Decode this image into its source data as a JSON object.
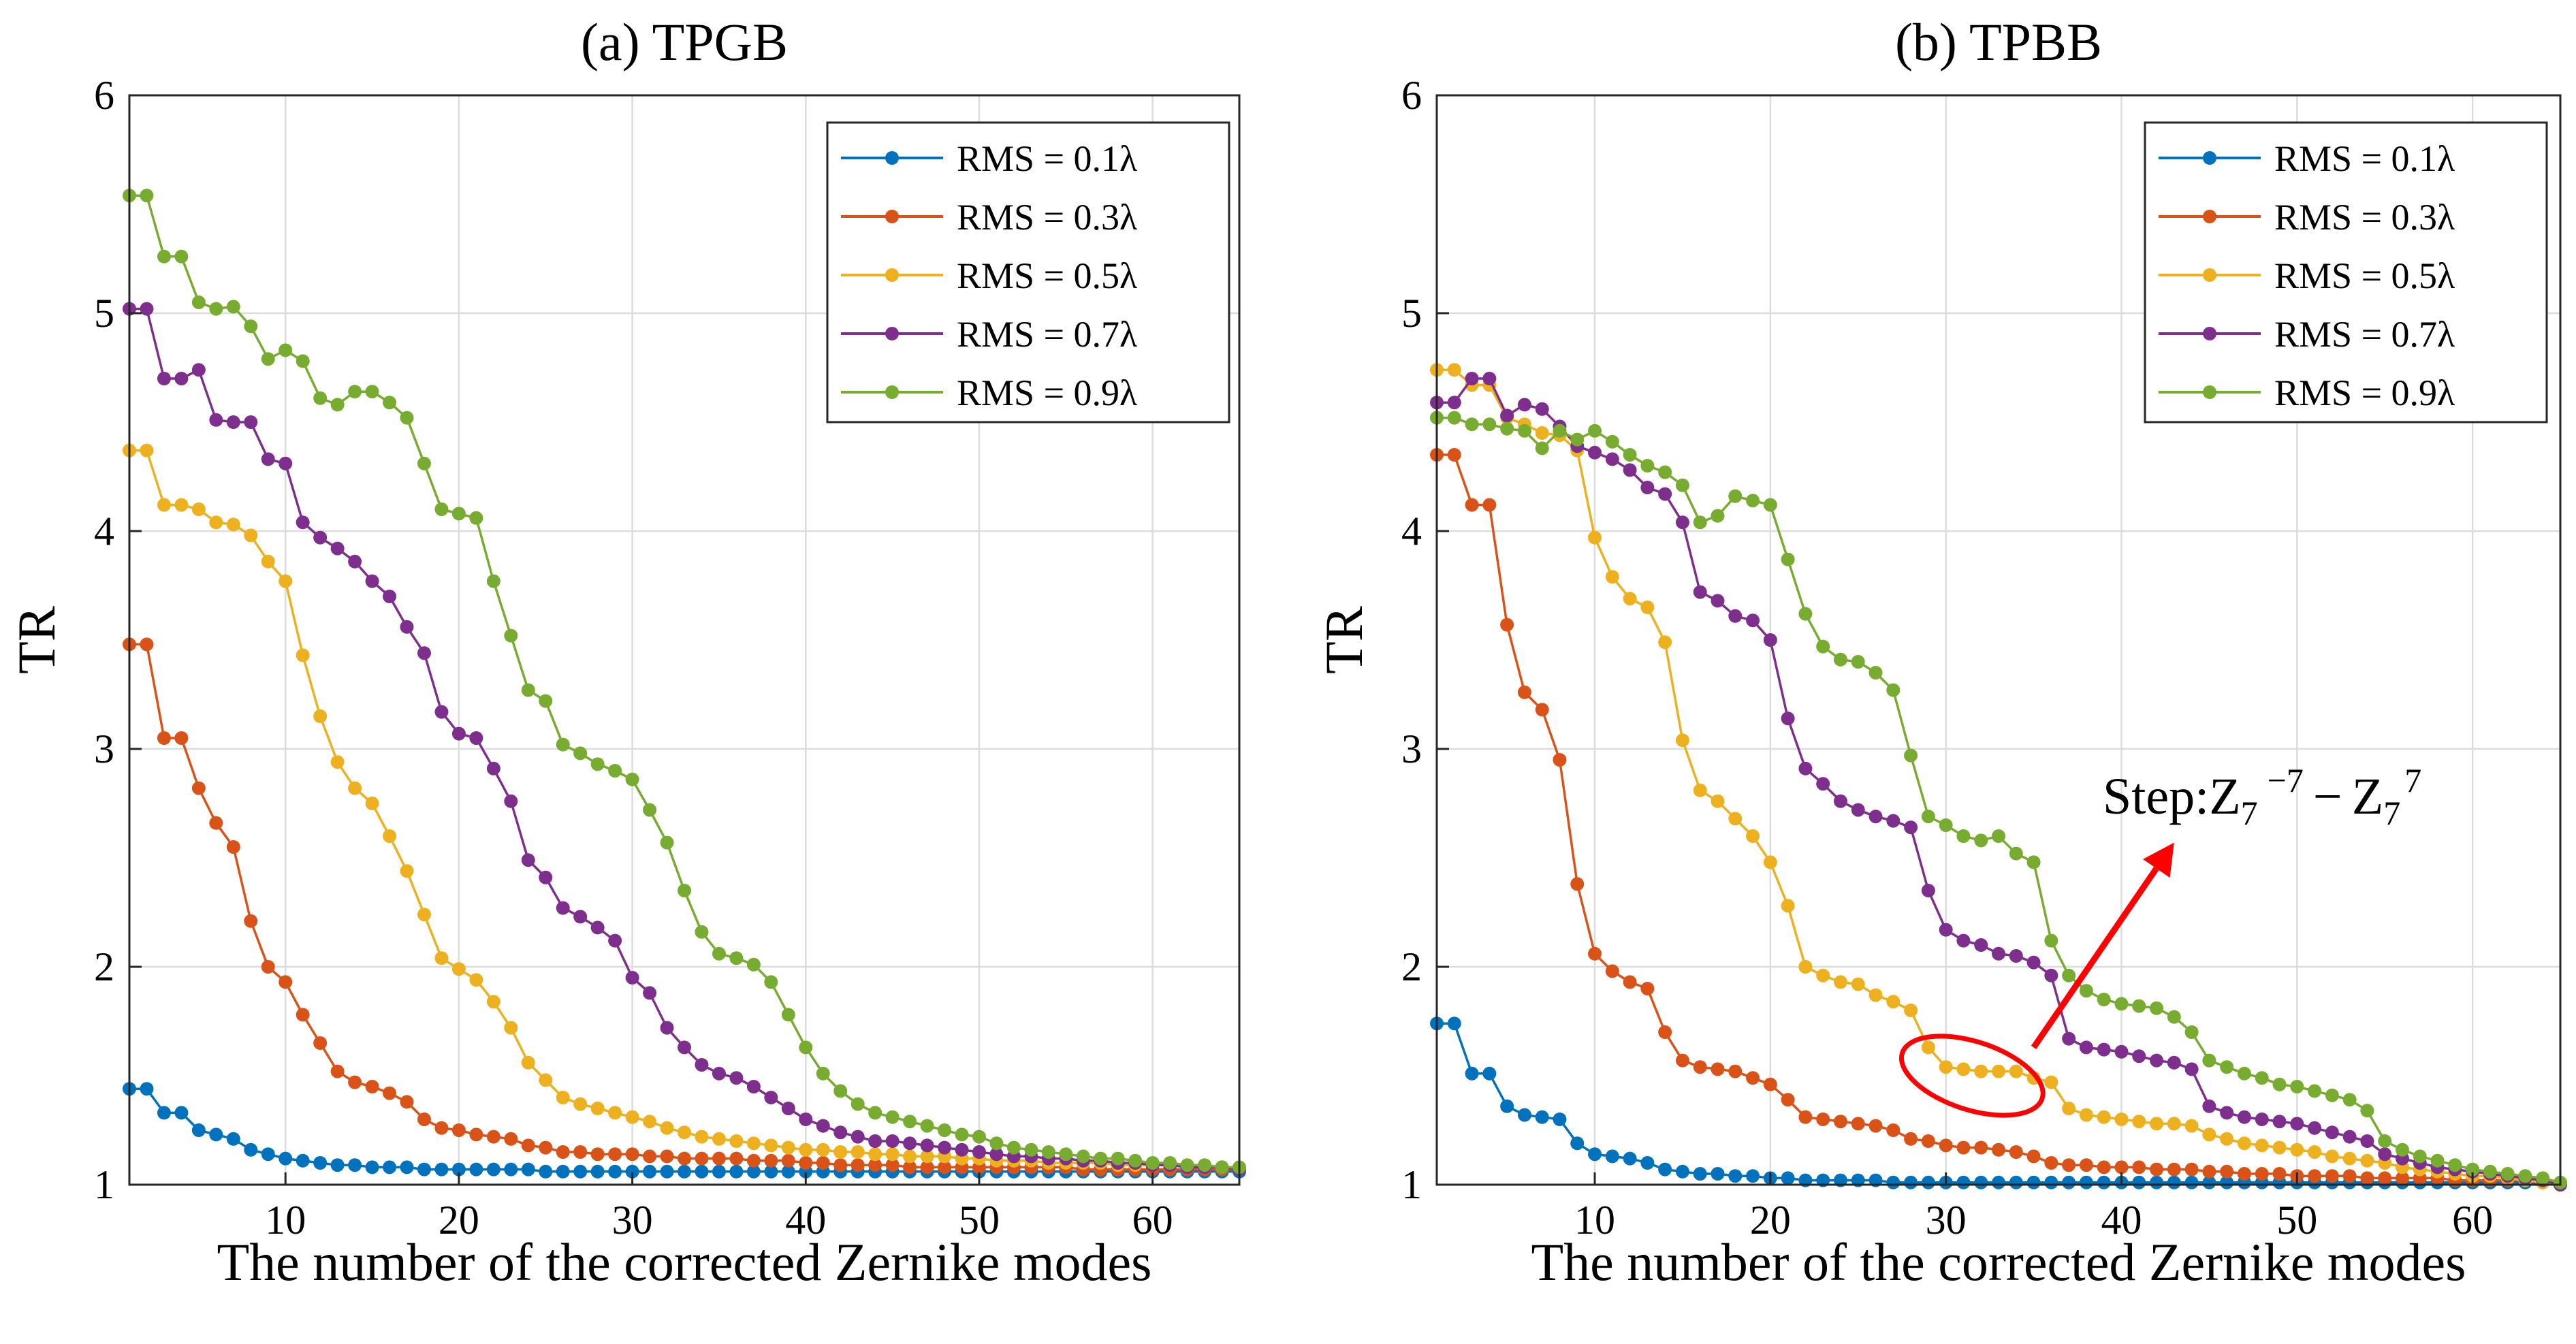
{
  "chart_data": [
    {
      "type": "line",
      "title": "(a) TPGB",
      "xlabel": "The number of the corrected Zernike modes",
      "ylabel": "TR",
      "xlim": [
        1,
        65
      ],
      "ylim": [
        1,
        6
      ],
      "xticks": [
        10,
        20,
        30,
        40,
        50,
        60
      ],
      "yticks": [
        1,
        2,
        3,
        4,
        5,
        6
      ],
      "grid": true,
      "legend_position": "top-right",
      "x": [
        1,
        2,
        3,
        4,
        5,
        6,
        7,
        8,
        9,
        10,
        11,
        12,
        13,
        14,
        15,
        16,
        17,
        18,
        19,
        20,
        21,
        22,
        23,
        24,
        25,
        26,
        27,
        28,
        29,
        30,
        31,
        32,
        33,
        34,
        35,
        36,
        37,
        38,
        39,
        40,
        41,
        42,
        43,
        44,
        45,
        46,
        47,
        48,
        49,
        50,
        51,
        52,
        53,
        54,
        55,
        56,
        57,
        58,
        59,
        60,
        61,
        62,
        63,
        64,
        65
      ],
      "series": [
        {
          "name": "RMS = 0.1λ",
          "color": "#0072BD",
          "values": [
            1.44,
            1.44,
            1.33,
            1.33,
            1.25,
            1.23,
            1.21,
            1.16,
            1.14,
            1.12,
            1.11,
            1.1,
            1.09,
            1.09,
            1.08,
            1.08,
            1.08,
            1.07,
            1.07,
            1.07,
            1.07,
            1.07,
            1.07,
            1.07,
            1.06,
            1.06,
            1.06,
            1.06,
            1.06,
            1.06,
            1.06,
            1.06,
            1.06,
            1.06,
            1.06,
            1.06,
            1.06,
            1.06,
            1.06,
            1.06,
            1.06,
            1.06,
            1.06,
            1.06,
            1.06,
            1.06,
            1.06,
            1.06,
            1.06,
            1.06,
            1.06,
            1.06,
            1.06,
            1.06,
            1.06,
            1.06,
            1.06,
            1.06,
            1.06,
            1.06,
            1.06,
            1.06,
            1.06,
            1.06,
            1.06
          ]
        },
        {
          "name": "RMS = 0.3λ",
          "color": "#D95319",
          "values": [
            3.48,
            3.48,
            3.05,
            3.05,
            2.82,
            2.66,
            2.55,
            2.21,
            2.0,
            1.93,
            1.78,
            1.65,
            1.52,
            1.47,
            1.45,
            1.42,
            1.38,
            1.3,
            1.26,
            1.25,
            1.23,
            1.22,
            1.21,
            1.18,
            1.17,
            1.15,
            1.15,
            1.14,
            1.14,
            1.14,
            1.13,
            1.13,
            1.12,
            1.12,
            1.12,
            1.12,
            1.11,
            1.11,
            1.11,
            1.1,
            1.1,
            1.09,
            1.09,
            1.09,
            1.09,
            1.08,
            1.08,
            1.08,
            1.08,
            1.08,
            1.08,
            1.08,
            1.08,
            1.08,
            1.08,
            1.07,
            1.07,
            1.07,
            1.07,
            1.07,
            1.07,
            1.07,
            1.07,
            1.07,
            1.07
          ]
        },
        {
          "name": "RMS = 0.5λ",
          "color": "#EDB120",
          "values": [
            4.37,
            4.37,
            4.12,
            4.12,
            4.1,
            4.04,
            4.03,
            3.98,
            3.86,
            3.77,
            3.43,
            3.15,
            2.94,
            2.82,
            2.75,
            2.6,
            2.44,
            2.24,
            2.04,
            1.99,
            1.94,
            1.84,
            1.72,
            1.56,
            1.48,
            1.4,
            1.37,
            1.35,
            1.33,
            1.31,
            1.29,
            1.26,
            1.24,
            1.22,
            1.21,
            1.2,
            1.19,
            1.18,
            1.17,
            1.16,
            1.16,
            1.15,
            1.15,
            1.14,
            1.14,
            1.13,
            1.13,
            1.13,
            1.12,
            1.12,
            1.11,
            1.11,
            1.11,
            1.1,
            1.1,
            1.1,
            1.1,
            1.09,
            1.09,
            1.09,
            1.09,
            1.08,
            1.08,
            1.08,
            1.07
          ]
        },
        {
          "name": "RMS = 0.7λ",
          "color": "#7E2F8E",
          "values": [
            5.02,
            5.02,
            4.7,
            4.7,
            4.74,
            4.51,
            4.5,
            4.5,
            4.33,
            4.31,
            4.04,
            3.97,
            3.92,
            3.86,
            3.77,
            3.7,
            3.56,
            3.44,
            3.17,
            3.07,
            3.05,
            2.91,
            2.76,
            2.49,
            2.41,
            2.27,
            2.23,
            2.18,
            2.12,
            1.95,
            1.88,
            1.72,
            1.63,
            1.55,
            1.51,
            1.49,
            1.45,
            1.4,
            1.35,
            1.3,
            1.27,
            1.24,
            1.22,
            1.2,
            1.2,
            1.19,
            1.18,
            1.17,
            1.16,
            1.15,
            1.14,
            1.13,
            1.13,
            1.12,
            1.12,
            1.11,
            1.11,
            1.1,
            1.1,
            1.09,
            1.09,
            1.08,
            1.08,
            1.08,
            1.07
          ]
        },
        {
          "name": "RMS = 0.9λ",
          "color": "#77AC30",
          "values": [
            5.54,
            5.54,
            5.26,
            5.26,
            5.05,
            5.02,
            5.03,
            4.94,
            4.79,
            4.83,
            4.78,
            4.61,
            4.58,
            4.64,
            4.64,
            4.59,
            4.52,
            4.31,
            4.1,
            4.08,
            4.06,
            3.77,
            3.52,
            3.27,
            3.22,
            3.02,
            2.98,
            2.93,
            2.9,
            2.86,
            2.72,
            2.57,
            2.35,
            2.16,
            2.06,
            2.04,
            2.01,
            1.93,
            1.78,
            1.63,
            1.51,
            1.43,
            1.37,
            1.33,
            1.31,
            1.29,
            1.27,
            1.25,
            1.23,
            1.22,
            1.19,
            1.17,
            1.16,
            1.15,
            1.14,
            1.13,
            1.12,
            1.12,
            1.11,
            1.1,
            1.1,
            1.09,
            1.09,
            1.08,
            1.08
          ]
        }
      ]
    },
    {
      "type": "line",
      "title": "(b) TPBB",
      "xlabel": "The number of the corrected Zernike modes",
      "ylabel": "TR",
      "xlim": [
        1,
        65
      ],
      "ylim": [
        1,
        6
      ],
      "xticks": [
        10,
        20,
        30,
        40,
        50,
        60
      ],
      "yticks": [
        1,
        2,
        3,
        4,
        5,
        6
      ],
      "grid": true,
      "legend_position": "top-right",
      "x": [
        1,
        2,
        3,
        4,
        5,
        6,
        7,
        8,
        9,
        10,
        11,
        12,
        13,
        14,
        15,
        16,
        17,
        18,
        19,
        20,
        21,
        22,
        23,
        24,
        25,
        26,
        27,
        28,
        29,
        30,
        31,
        32,
        33,
        34,
        35,
        36,
        37,
        38,
        39,
        40,
        41,
        42,
        43,
        44,
        45,
        46,
        47,
        48,
        49,
        50,
        51,
        52,
        53,
        54,
        55,
        56,
        57,
        58,
        59,
        60,
        61,
        62,
        63,
        64,
        65
      ],
      "series": [
        {
          "name": "RMS = 0.1λ",
          "color": "#0072BD",
          "values": [
            1.74,
            1.74,
            1.51,
            1.51,
            1.36,
            1.32,
            1.31,
            1.3,
            1.19,
            1.14,
            1.13,
            1.12,
            1.1,
            1.07,
            1.06,
            1.05,
            1.05,
            1.04,
            1.04,
            1.03,
            1.03,
            1.02,
            1.02,
            1.02,
            1.02,
            1.02,
            1.01,
            1.01,
            1.01,
            1.01,
            1.01,
            1.01,
            1.01,
            1.01,
            1.01,
            1.01,
            1.01,
            1.01,
            1.01,
            1.01,
            1.01,
            1.01,
            1.01,
            1.01,
            1.01,
            1.01,
            1.01,
            1.01,
            1.01,
            1.01,
            1.01,
            1.01,
            1.01,
            1.01,
            1.01,
            1.01,
            1.01,
            1.01,
            1.01,
            1.01,
            1.01,
            1.01,
            1.01,
            1.01,
            1.0
          ]
        },
        {
          "name": "RMS = 0.3λ",
          "color": "#D95319",
          "values": [
            4.35,
            4.35,
            4.12,
            4.12,
            3.57,
            3.26,
            3.18,
            2.95,
            2.38,
            2.06,
            1.98,
            1.93,
            1.9,
            1.7,
            1.57,
            1.54,
            1.53,
            1.52,
            1.49,
            1.46,
            1.39,
            1.31,
            1.3,
            1.29,
            1.28,
            1.27,
            1.25,
            1.21,
            1.2,
            1.18,
            1.17,
            1.17,
            1.16,
            1.15,
            1.13,
            1.1,
            1.09,
            1.09,
            1.08,
            1.08,
            1.08,
            1.07,
            1.07,
            1.07,
            1.06,
            1.06,
            1.05,
            1.05,
            1.05,
            1.04,
            1.04,
            1.04,
            1.04,
            1.03,
            1.03,
            1.03,
            1.03,
            1.03,
            1.02,
            1.02,
            1.02,
            1.02,
            1.02,
            1.01,
            1.0
          ]
        },
        {
          "name": "RMS = 0.5λ",
          "color": "#EDB120",
          "values": [
            4.74,
            4.74,
            4.67,
            4.67,
            4.52,
            4.49,
            4.45,
            4.44,
            4.37,
            3.97,
            3.79,
            3.69,
            3.65,
            3.49,
            3.04,
            2.81,
            2.76,
            2.68,
            2.6,
            2.48,
            2.28,
            2.0,
            1.96,
            1.93,
            1.92,
            1.87,
            1.84,
            1.8,
            1.63,
            1.54,
            1.53,
            1.52,
            1.52,
            1.52,
            1.49,
            1.47,
            1.35,
            1.32,
            1.31,
            1.3,
            1.29,
            1.28,
            1.28,
            1.27,
            1.23,
            1.21,
            1.19,
            1.18,
            1.17,
            1.16,
            1.15,
            1.13,
            1.12,
            1.11,
            1.1,
            1.08,
            1.07,
            1.06,
            1.05,
            1.04,
            1.04,
            1.03,
            1.02,
            1.01,
            1.0
          ]
        },
        {
          "name": "RMS = 0.7λ",
          "color": "#7E2F8E",
          "values": [
            4.59,
            4.59,
            4.7,
            4.7,
            4.53,
            4.58,
            4.56,
            4.48,
            4.39,
            4.36,
            4.33,
            4.28,
            4.2,
            4.17,
            4.04,
            3.72,
            3.68,
            3.61,
            3.59,
            3.5,
            3.14,
            2.91,
            2.84,
            2.76,
            2.72,
            2.69,
            2.67,
            2.64,
            2.35,
            2.17,
            2.12,
            2.1,
            2.06,
            2.05,
            2.02,
            1.96,
            1.67,
            1.63,
            1.62,
            1.61,
            1.59,
            1.57,
            1.56,
            1.53,
            1.36,
            1.33,
            1.31,
            1.3,
            1.29,
            1.28,
            1.26,
            1.24,
            1.22,
            1.2,
            1.14,
            1.12,
            1.1,
            1.08,
            1.07,
            1.06,
            1.05,
            1.04,
            1.03,
            1.02,
            1.0
          ]
        },
        {
          "name": "RMS = 0.9λ",
          "color": "#77AC30",
          "values": [
            4.52,
            4.52,
            4.49,
            4.49,
            4.47,
            4.46,
            4.38,
            4.46,
            4.42,
            4.46,
            4.41,
            4.35,
            4.3,
            4.27,
            4.21,
            4.04,
            4.07,
            4.16,
            4.14,
            4.12,
            3.87,
            3.62,
            3.47,
            3.41,
            3.4,
            3.35,
            3.27,
            2.97,
            2.69,
            2.65,
            2.6,
            2.58,
            2.6,
            2.52,
            2.48,
            2.12,
            1.96,
            1.89,
            1.85,
            1.83,
            1.82,
            1.81,
            1.77,
            1.7,
            1.57,
            1.54,
            1.51,
            1.49,
            1.46,
            1.45,
            1.43,
            1.41,
            1.39,
            1.34,
            1.2,
            1.16,
            1.13,
            1.11,
            1.09,
            1.07,
            1.06,
            1.05,
            1.04,
            1.03,
            1.01
          ]
        }
      ]
    }
  ],
  "annotation": {
    "prefix": "Step:",
    "z1_base": "Z",
    "z1_sub": "7",
    "z1_sup": "−7",
    "dash": "−",
    "z2_base": "Z",
    "z2_sub": "7",
    "z2_sup": "7",
    "ellipse_center": [
      31.5,
      1.5
    ],
    "arrow_from": [
      35,
      1.63
    ],
    "arrow_to": [
      43,
      2.57
    ],
    "color": "#FF0000"
  }
}
